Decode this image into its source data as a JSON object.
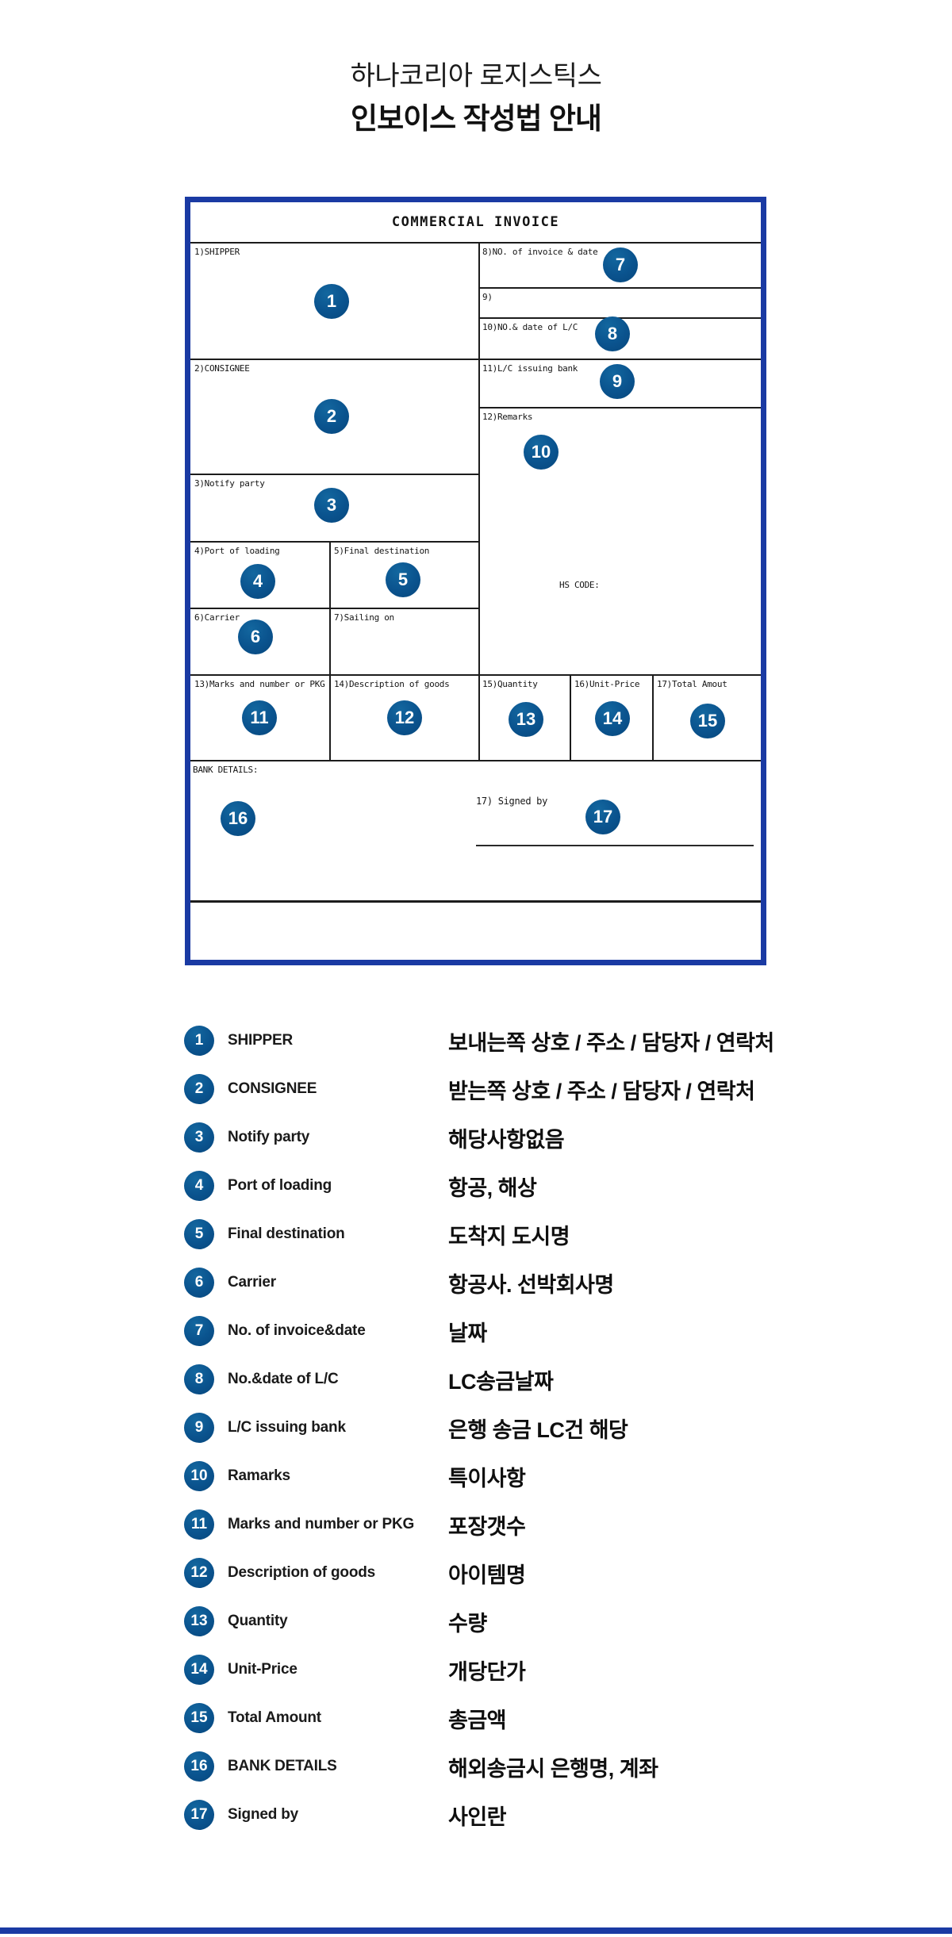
{
  "page": {
    "title_line1": "하나코리아 로지스틱스",
    "title_line2": "인보이스 작성법 안내"
  },
  "invoice": {
    "header": "COMMERCIAL INVOICE",
    "fields": {
      "shipper": "1)SHIPPER",
      "consignee": "2)CONSIGNEE",
      "notify_party": "3)Notify party",
      "port_of_loading": "4)Port of loading",
      "final_destination": "5)Final destination",
      "carrier": "6)Carrier",
      "sailing_on": "7)Sailing on",
      "no_of_invoice_date": "8)NO. of invoice & date",
      "field_9": "9)",
      "no_date_of_lc": "10)NO.& date of L/C",
      "lc_issuing_bank": "11)L/C issuing bank",
      "remarks": "12)Remarks",
      "hs_code": "HS CODE:",
      "marks_and_number": "13)Marks and number or PKG",
      "description_of_goods": "14)Description of goods",
      "quantity": "15)Quantity",
      "unit_price": "16)Unit-Price",
      "total_amount": "17)Total Amout",
      "bank_details": "BANK DETAILS:",
      "signed_by": "17) Signed by"
    }
  },
  "legend": {
    "items": [
      {
        "num": "1",
        "label": "SHIPPER",
        "desc": "보내는쪽 상호 / 주소 / 담당자 / 연락처"
      },
      {
        "num": "2",
        "label": "CONSIGNEE",
        "desc": "받는쪽 상호 / 주소 / 담당자 / 연락처"
      },
      {
        "num": "3",
        "label": "Notify party",
        "desc": "해당사항없음"
      },
      {
        "num": "4",
        "label": "Port of loading",
        "desc": "항공, 해상"
      },
      {
        "num": "5",
        "label": "Final destination",
        "desc": "도착지 도시명"
      },
      {
        "num": "6",
        "label": "Carrier",
        "desc": "항공사. 선박회사명"
      },
      {
        "num": "7",
        "label": "No. of invoice&date",
        "desc": "날짜"
      },
      {
        "num": "8",
        "label": "No.&date of L/C",
        "desc": "LC송금날짜"
      },
      {
        "num": "9",
        "label": "L/C issuing bank",
        "desc": "은행 송금 LC건 해당"
      },
      {
        "num": "10",
        "label": "Ramarks",
        "desc": "특이사항"
      },
      {
        "num": "11",
        "label": "Marks and number or PKG",
        "desc": "포장갯수"
      },
      {
        "num": "12",
        "label": "Description of goods",
        "desc": "아이템명"
      },
      {
        "num": "13",
        "label": "Quantity",
        "desc": "수량"
      },
      {
        "num": "14",
        "label": "Unit-Price",
        "desc": "개당단가"
      },
      {
        "num": "15",
        "label": "Total Amount",
        "desc": "총금액"
      },
      {
        "num": "16",
        "label": "BANK DETAILS",
        "desc": "해외송금시 은행명, 계좌"
      },
      {
        "num": "17",
        "label": "Signed by",
        "desc": "사인란"
      }
    ]
  },
  "colors": {
    "circle_blue": "#0a538e",
    "border_blue": "#1a3aa3",
    "line_dark": "#1c1c1c"
  }
}
